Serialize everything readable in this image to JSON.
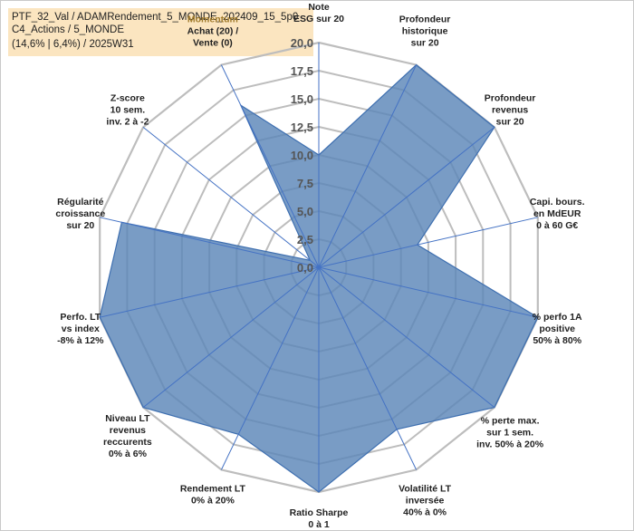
{
  "title_lines": [
    "PTF_32_Val / ADAMRendement_5_MONDE_202409_15_5p0",
    "C4_Actions / 5_MONDE",
    "(14,6% | 6,4%) / 2025W31"
  ],
  "colors": {
    "fill": "#5b86b8",
    "stroke": "#3e6fb0",
    "grid": "#bdbdbd",
    "spoke": "#4472c4",
    "title_bg": "#fbe5c0",
    "highlight_label": "#a07a2a"
  },
  "chart_data": {
    "type": "radar",
    "range": [
      0,
      20
    ],
    "tick_step": 2.5,
    "tick_labels": [
      "0,0",
      "2,5",
      "5,0",
      "7,5",
      "10,0",
      "12,5",
      "15,0",
      "17,5",
      "20,0"
    ],
    "grid": true,
    "categories": [
      {
        "label": [
          "Note",
          "ESG sur 20"
        ],
        "highlight": false
      },
      {
        "label": [
          "Profondeur",
          "historique",
          "sur 20"
        ],
        "highlight": false
      },
      {
        "label": [
          "Profondeur",
          "revenus",
          "sur 20"
        ],
        "highlight": false
      },
      {
        "label": [
          "Capi. bours.",
          "en MdEUR",
          "0 à 60 G€"
        ],
        "highlight": false
      },
      {
        "label": [
          "% perfo 1A",
          "positive",
          "50% à 80%"
        ],
        "highlight": false
      },
      {
        "label": [
          "% perte max.",
          "sur 1 sem.",
          "inv. 50% à 20%"
        ],
        "highlight": false
      },
      {
        "label": [
          "Volatilité LT",
          "inversée",
          "40% à 0%"
        ],
        "highlight": false
      },
      {
        "label": [
          "Ratio Sharpe",
          "0 à 1"
        ],
        "highlight": false
      },
      {
        "label": [
          "Rendement LT",
          "0% à 20%"
        ],
        "highlight": false
      },
      {
        "label": [
          "Niveau LT",
          "revenus",
          "reccurents",
          "0% à 6%"
        ],
        "highlight": false
      },
      {
        "label": [
          "Perfo. LT",
          "vs index",
          "-8% à 12%"
        ],
        "highlight": false
      },
      {
        "label": [
          "Régularité",
          "croissance",
          "sur 20"
        ],
        "highlight": false
      },
      {
        "label": [
          "Z-score",
          "10 sem.",
          "inv. 2 à -2"
        ],
        "highlight": false
      },
      {
        "label": [
          "Momentum",
          "Achat (20) /",
          "Vente (0)"
        ],
        "highlight": true
      }
    ],
    "series": [
      {
        "values": [
          10.0,
          20.0,
          20.0,
          9.0,
          20.0,
          20.0,
          16.0,
          20.0,
          16.5,
          20.0,
          20.0,
          18.0,
          1.0,
          16.0
        ]
      }
    ]
  }
}
